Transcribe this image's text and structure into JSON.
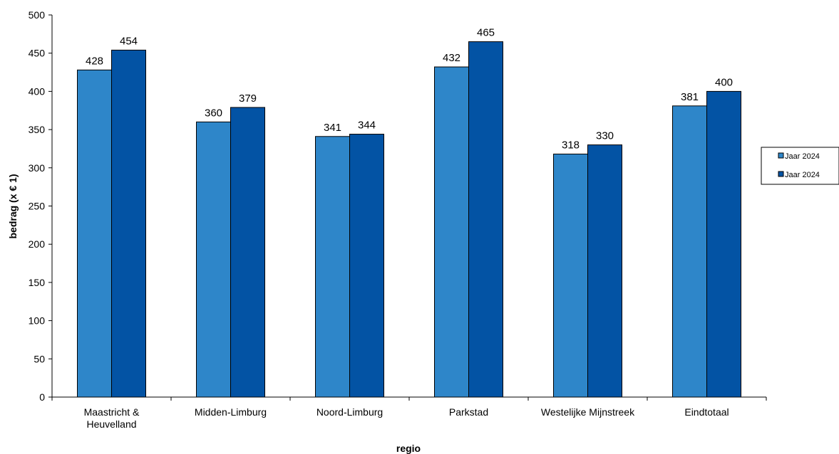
{
  "chart_data": {
    "type": "bar",
    "xlabel": "regio",
    "ylabel": "bedrag (x € 1)",
    "ylim": [
      0,
      500
    ],
    "ytick_step": 50,
    "categories": [
      [
        "Maastricht &",
        "Heuvelland"
      ],
      [
        "Midden-Limburg"
      ],
      [
        "Noord-Limburg"
      ],
      [
        "Parkstad"
      ],
      [
        "Westelijke Mijnstreek"
      ],
      [
        "Eindtotaal"
      ]
    ],
    "series": [
      {
        "name": "Jaar 2024",
        "color": "#2E86C9",
        "values": [
          428,
          360,
          341,
          432,
          318,
          381
        ]
      },
      {
        "name": "Jaar 2024",
        "color": "#0353A4",
        "values": [
          454,
          379,
          344,
          465,
          330,
          400
        ]
      }
    ],
    "legend_position": "right",
    "grid": false
  }
}
